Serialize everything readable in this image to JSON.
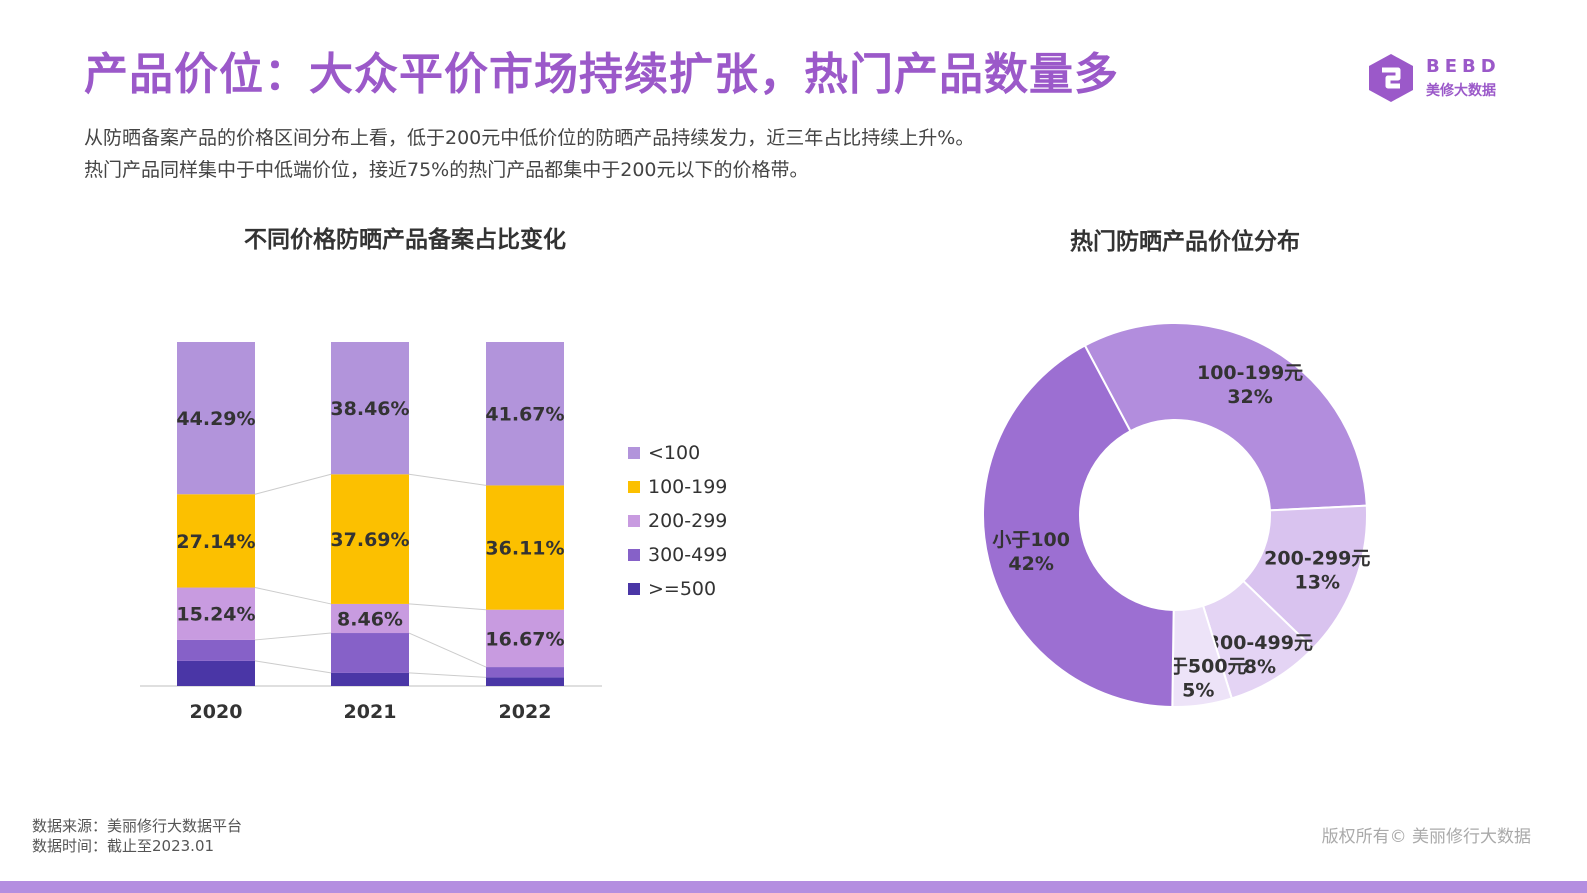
{
  "header": {
    "title": "产品价位：大众平价市场持续扩张，热门产品数量多",
    "description": [
      "从防晒备案产品的价格区间分布上看，低于200元中低价位的防晒产品持续发力，近三年占比持续上升%。",
      "热门产品同样集中于中低端价位，接近75%的热门产品都集中于200元以下的价格带。"
    ]
  },
  "logo": {
    "text_en": "BEBD",
    "text_cn": "美修大数据",
    "color": "#9b59c9"
  },
  "footer": {
    "source": "数据来源：美丽修行大数据平台",
    "date": "数据时间：截止至2023.01",
    "copyright": "版权所有© 美丽修行大数据"
  },
  "colors": {
    "title": "#9b59c9",
    "bottom_band": "#b48ee0"
  },
  "chart_data": [
    {
      "type": "bar",
      "stacked": true,
      "normalized": true,
      "title": "不同价格防晒产品备案占比变化",
      "categories": [
        "2020",
        "2021",
        "2022"
      ],
      "series": [
        {
          "name": ">=500",
          "color": "#4a36a6",
          "values": [
            7.3,
            3.8,
            2.5
          ],
          "labels": [
            "",
            "",
            ""
          ]
        },
        {
          "name": "300-499",
          "color": "#8661c8",
          "values": [
            6.1,
            11.6,
            3.0
          ],
          "labels": [
            "",
            "",
            ""
          ]
        },
        {
          "name": "200-299",
          "color": "#c89be0",
          "values": [
            15.24,
            8.46,
            16.67
          ],
          "labels": [
            "15.24%",
            "8.46%",
            "16.67%"
          ]
        },
        {
          "name": "100-199",
          "color": "#fcc000",
          "values": [
            27.14,
            37.69,
            36.11
          ],
          "labels": [
            "27.14%",
            "37.69%",
            "36.11%"
          ]
        },
        {
          "name": "<100",
          "color": "#b294db",
          "values": [
            44.29,
            38.46,
            41.67
          ],
          "labels": [
            "44.29%",
            "38.46%",
            "41.67%"
          ]
        }
      ],
      "legend_order": [
        "<100",
        "100-199",
        "200-299",
        "300-499",
        ">=500"
      ],
      "legend_position": "right",
      "grid": false
    },
    {
      "type": "pie",
      "donut": true,
      "title": "热门防晒产品价位分布",
      "slices": [
        {
          "label": "100-199元",
          "value": 32,
          "value_label": "32%",
          "color": "#b28ddd"
        },
        {
          "label": "200-299元",
          "value": 13,
          "value_label": "13%",
          "color": "#d9c3ef"
        },
        {
          "label": "300-499元",
          "value": 8,
          "value_label": "8%",
          "color": "#e4d4f4"
        },
        {
          "label": "大于500元",
          "value": 5,
          "value_label": "5%",
          "color": "#ede3f8"
        },
        {
          "label": "小于100",
          "value": 42,
          "value_label": "42%",
          "color": "#9c6fd2"
        }
      ]
    }
  ]
}
